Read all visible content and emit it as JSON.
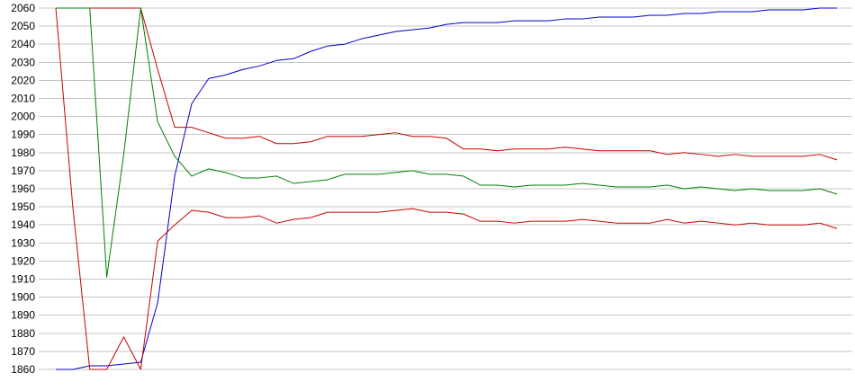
{
  "chart_data": {
    "type": "line",
    "title": "",
    "xlabel": "",
    "ylabel": "",
    "ylim": [
      1860,
      2060
    ],
    "yticks": [
      1860,
      1870,
      1880,
      1890,
      1900,
      1910,
      1920,
      1930,
      1940,
      1950,
      1960,
      1970,
      1980,
      1990,
      2000,
      2010,
      2020,
      2030,
      2040,
      2050,
      2060
    ],
    "x": [
      0,
      1,
      2,
      3,
      4,
      5,
      6,
      7,
      8,
      9,
      10,
      11,
      12,
      13,
      14,
      15,
      16,
      17,
      18,
      19,
      20,
      21,
      22,
      23,
      24,
      25,
      26,
      27,
      28,
      29,
      30,
      31,
      32,
      33,
      34,
      35,
      36,
      37,
      38,
      39,
      40,
      41,
      42,
      43,
      44,
      45,
      46
    ],
    "grid": true,
    "legend": "none",
    "series": [
      {
        "color": "#0000c8",
        "values": [
          1860,
          1860,
          1862,
          1862,
          1863,
          1864,
          1897,
          1967,
          2007,
          2021,
          2023,
          2026,
          2028,
          2031,
          2032,
          2036,
          2039,
          2040,
          2043,
          2045,
          2047,
          2048,
          2049,
          2051,
          2052,
          2052,
          2052,
          2053,
          2053,
          2053,
          2054,
          2054,
          2055,
          2055,
          2055,
          2056,
          2056,
          2057,
          2057,
          2058,
          2058,
          2058,
          2059,
          2059,
          2059,
          2060,
          2060
        ]
      },
      {
        "color": "#c80000",
        "values": [
          2060,
          2060,
          2060,
          2060,
          2060,
          2060,
          2026,
          1994,
          1994,
          1991,
          1988,
          1988,
          1989,
          1985,
          1985,
          1986,
          1989,
          1989,
          1989,
          1990,
          1991,
          1989,
          1989,
          1988,
          1982,
          1982,
          1981,
          1982,
          1982,
          1982,
          1983,
          1982,
          1981,
          1981,
          1981,
          1981,
          1979,
          1980,
          1979,
          1978,
          1979,
          1978,
          1978,
          1978,
          1978,
          1979,
          1976
        ]
      },
      {
        "color": "#008000",
        "values": [
          2060,
          2060,
          2060,
          1911,
          1979,
          2060,
          1997,
          1978,
          1967,
          1971,
          1969,
          1966,
          1966,
          1967,
          1963,
          1964,
          1965,
          1968,
          1968,
          1968,
          1969,
          1970,
          1968,
          1968,
          1967,
          1962,
          1962,
          1961,
          1962,
          1962,
          1962,
          1963,
          1962,
          1961,
          1961,
          1961,
          1962,
          1960,
          1961,
          1960,
          1959,
          1960,
          1959,
          1959,
          1959,
          1960,
          1957
        ]
      },
      {
        "color": "#c80000",
        "values": [
          2060,
          1950,
          1860,
          1860,
          1878,
          1860,
          1931,
          1940,
          1948,
          1947,
          1944,
          1944,
          1945,
          1941,
          1943,
          1944,
          1947,
          1947,
          1947,
          1947,
          1948,
          1949,
          1947,
          1947,
          1946,
          1942,
          1942,
          1941,
          1942,
          1942,
          1942,
          1943,
          1942,
          1941,
          1941,
          1941,
          1943,
          1941,
          1942,
          1941,
          1940,
          1941,
          1940,
          1940,
          1940,
          1941,
          1938
        ]
      }
    ]
  }
}
